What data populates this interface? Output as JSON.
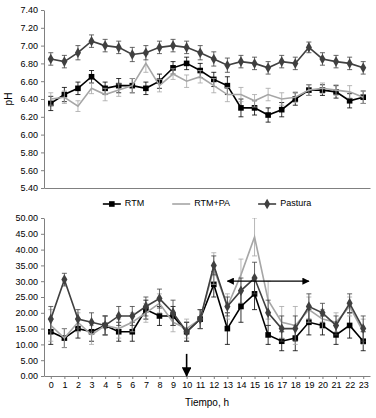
{
  "chart_data": [
    {
      "type": "line",
      "ylabel": "pH",
      "x": [
        0,
        1,
        2,
        3,
        4,
        5,
        6,
        7,
        8,
        9,
        10,
        11,
        12,
        13,
        14,
        15,
        16,
        17,
        18,
        19,
        20,
        21,
        22,
        23
      ],
      "xlim": [
        -0.5,
        23.5
      ],
      "ylim": [
        5.4,
        7.4
      ],
      "yticks": [
        {
          "value": 5.4,
          "label": "5.40"
        },
        {
          "value": 5.6,
          "label": "5.60"
        },
        {
          "value": 5.8,
          "label": "5.80"
        },
        {
          "value": 6.0,
          "label": "6.00"
        },
        {
          "value": 6.2,
          "label": "6.20"
        },
        {
          "value": 6.4,
          "label": "6.40"
        },
        {
          "value": 6.6,
          "label": "6.60"
        },
        {
          "value": 6.8,
          "label": "6.80"
        },
        {
          "value": 7.0,
          "label": "7.00"
        },
        {
          "value": 7.2,
          "label": "7.20"
        },
        {
          "value": 7.4,
          "label": "7.40"
        }
      ],
      "tick_labels": "y",
      "grid": false,
      "series": [
        {
          "name": "RTM",
          "color": "#000000",
          "marker": "square",
          "line_style": "solid",
          "values": [
            6.35,
            6.45,
            6.52,
            6.65,
            6.52,
            6.55,
            6.55,
            6.52,
            6.6,
            6.75,
            6.8,
            6.72,
            6.62,
            6.55,
            6.3,
            6.3,
            6.22,
            6.28,
            6.4,
            6.5,
            6.5,
            6.48,
            6.38,
            6.42
          ],
          "errors": [
            0.08,
            0.08,
            0.07,
            0.07,
            0.07,
            0.08,
            0.08,
            0.07,
            0.08,
            0.07,
            0.07,
            0.08,
            0.08,
            0.1,
            0.1,
            0.08,
            0.08,
            0.08,
            0.07,
            0.06,
            0.06,
            0.07,
            0.08,
            0.07
          ]
        },
        {
          "name": "RTM+PA",
          "color": "#a6a6a6",
          "marker": "none",
          "line_style": "solid",
          "values": [
            6.4,
            6.42,
            6.32,
            6.52,
            6.45,
            6.5,
            6.55,
            6.8,
            6.55,
            6.68,
            6.6,
            6.65,
            6.55,
            6.45,
            6.45,
            6.38,
            6.45,
            6.4,
            6.42,
            6.5,
            6.52,
            6.5,
            6.48,
            6.42
          ],
          "errors": [
            0.07,
            0.07,
            0.06,
            0.06,
            0.07,
            0.07,
            0.08,
            0.1,
            0.07,
            0.06,
            0.07,
            0.07,
            0.08,
            0.08,
            0.08,
            0.07,
            0.07,
            0.07,
            0.06,
            0.06,
            0.06,
            0.06,
            0.07,
            0.07
          ]
        },
        {
          "name": "Pastura",
          "color": "#404040",
          "marker": "diamond",
          "line_style": "solid",
          "values": [
            6.85,
            6.82,
            6.92,
            7.05,
            7.0,
            6.98,
            6.9,
            6.92,
            6.98,
            7.0,
            6.98,
            6.92,
            6.85,
            6.78,
            6.82,
            6.8,
            6.75,
            6.82,
            6.8,
            6.98,
            6.85,
            6.82,
            6.8,
            6.75
          ],
          "errors": [
            0.07,
            0.07,
            0.08,
            0.07,
            0.07,
            0.07,
            0.08,
            0.08,
            0.07,
            0.07,
            0.07,
            0.08,
            0.08,
            0.08,
            0.07,
            0.07,
            0.07,
            0.07,
            0.07,
            0.06,
            0.07,
            0.07,
            0.07,
            0.07
          ]
        }
      ]
    },
    {
      "type": "line",
      "xlabel": "Tiempo, h",
      "x": [
        0,
        1,
        2,
        3,
        4,
        5,
        6,
        7,
        8,
        9,
        10,
        11,
        12,
        13,
        14,
        15,
        16,
        17,
        18,
        19,
        20,
        21,
        22,
        23
      ],
      "xlim": [
        -0.5,
        23.5
      ],
      "xticks": [
        0,
        1,
        2,
        3,
        4,
        5,
        6,
        7,
        8,
        9,
        10,
        11,
        12,
        13,
        14,
        15,
        16,
        17,
        18,
        19,
        20,
        21,
        22,
        23
      ],
      "ylim": [
        0,
        50
      ],
      "yticks": [
        {
          "value": 0,
          "label": "0.00"
        },
        {
          "value": 5,
          "label": "5.00"
        },
        {
          "value": 10,
          "label": "10.00"
        },
        {
          "value": 15,
          "label": "15.00"
        },
        {
          "value": 20,
          "label": "20.00"
        },
        {
          "value": 25,
          "label": "25.00"
        },
        {
          "value": 30,
          "label": "30.00"
        },
        {
          "value": 35,
          "label": "35.00"
        },
        {
          "value": 40,
          "label": "40.00"
        },
        {
          "value": 45,
          "label": "45.00"
        },
        {
          "value": 50,
          "label": "50.00"
        }
      ],
      "grid": false,
      "legend": "top",
      "series": [
        {
          "name": "RTM",
          "color": "#000000",
          "marker": "square",
          "line_style": "solid",
          "values": [
            14,
            12,
            15,
            14,
            16,
            14,
            14,
            21,
            19,
            19,
            14,
            18,
            29,
            15,
            22,
            26,
            13,
            11,
            12,
            17,
            16,
            13,
            16,
            11
          ],
          "errors": [
            4,
            3,
            3,
            3,
            3,
            3,
            3,
            3,
            3,
            3,
            3,
            3,
            4,
            5,
            5,
            5,
            3,
            3,
            4,
            4,
            3,
            3,
            4,
            3
          ]
        },
        {
          "name": "RTM+PA",
          "color": "#a6a6a6",
          "marker": "none",
          "line_style": "solid",
          "values": [
            16,
            12,
            17,
            13,
            16,
            15,
            17,
            20,
            23,
            17,
            15,
            18,
            34,
            22,
            32,
            44,
            24,
            17,
            16,
            21,
            18,
            17,
            22,
            14
          ],
          "errors": [
            5,
            3,
            3,
            3,
            3,
            3,
            3,
            3,
            3,
            3,
            3,
            3,
            5,
            4,
            5,
            6,
            6,
            5,
            6,
            4,
            3,
            3,
            3,
            4
          ]
        },
        {
          "name": "Pastura",
          "color": "#404040",
          "marker": "diamond",
          "line_style": "solid",
          "values": [
            18,
            30.5,
            18,
            17,
            16,
            19,
            19,
            22,
            24.5,
            20,
            14,
            18,
            35,
            22,
            27,
            31,
            20,
            15,
            15,
            22,
            20,
            16,
            23,
            15
          ],
          "errors": [
            4,
            2,
            3,
            3,
            3,
            3,
            3,
            3,
            3,
            4,
            3,
            3,
            3,
            3,
            4,
            5,
            4,
            4,
            4,
            4,
            3,
            3,
            3,
            4
          ]
        }
      ],
      "annotations": [
        {
          "type": "arrow",
          "x": 10,
          "y": [
            7,
            0
          ]
        },
        {
          "type": "range_arrow",
          "x": [
            13,
            19
          ],
          "y": 30
        }
      ]
    }
  ]
}
